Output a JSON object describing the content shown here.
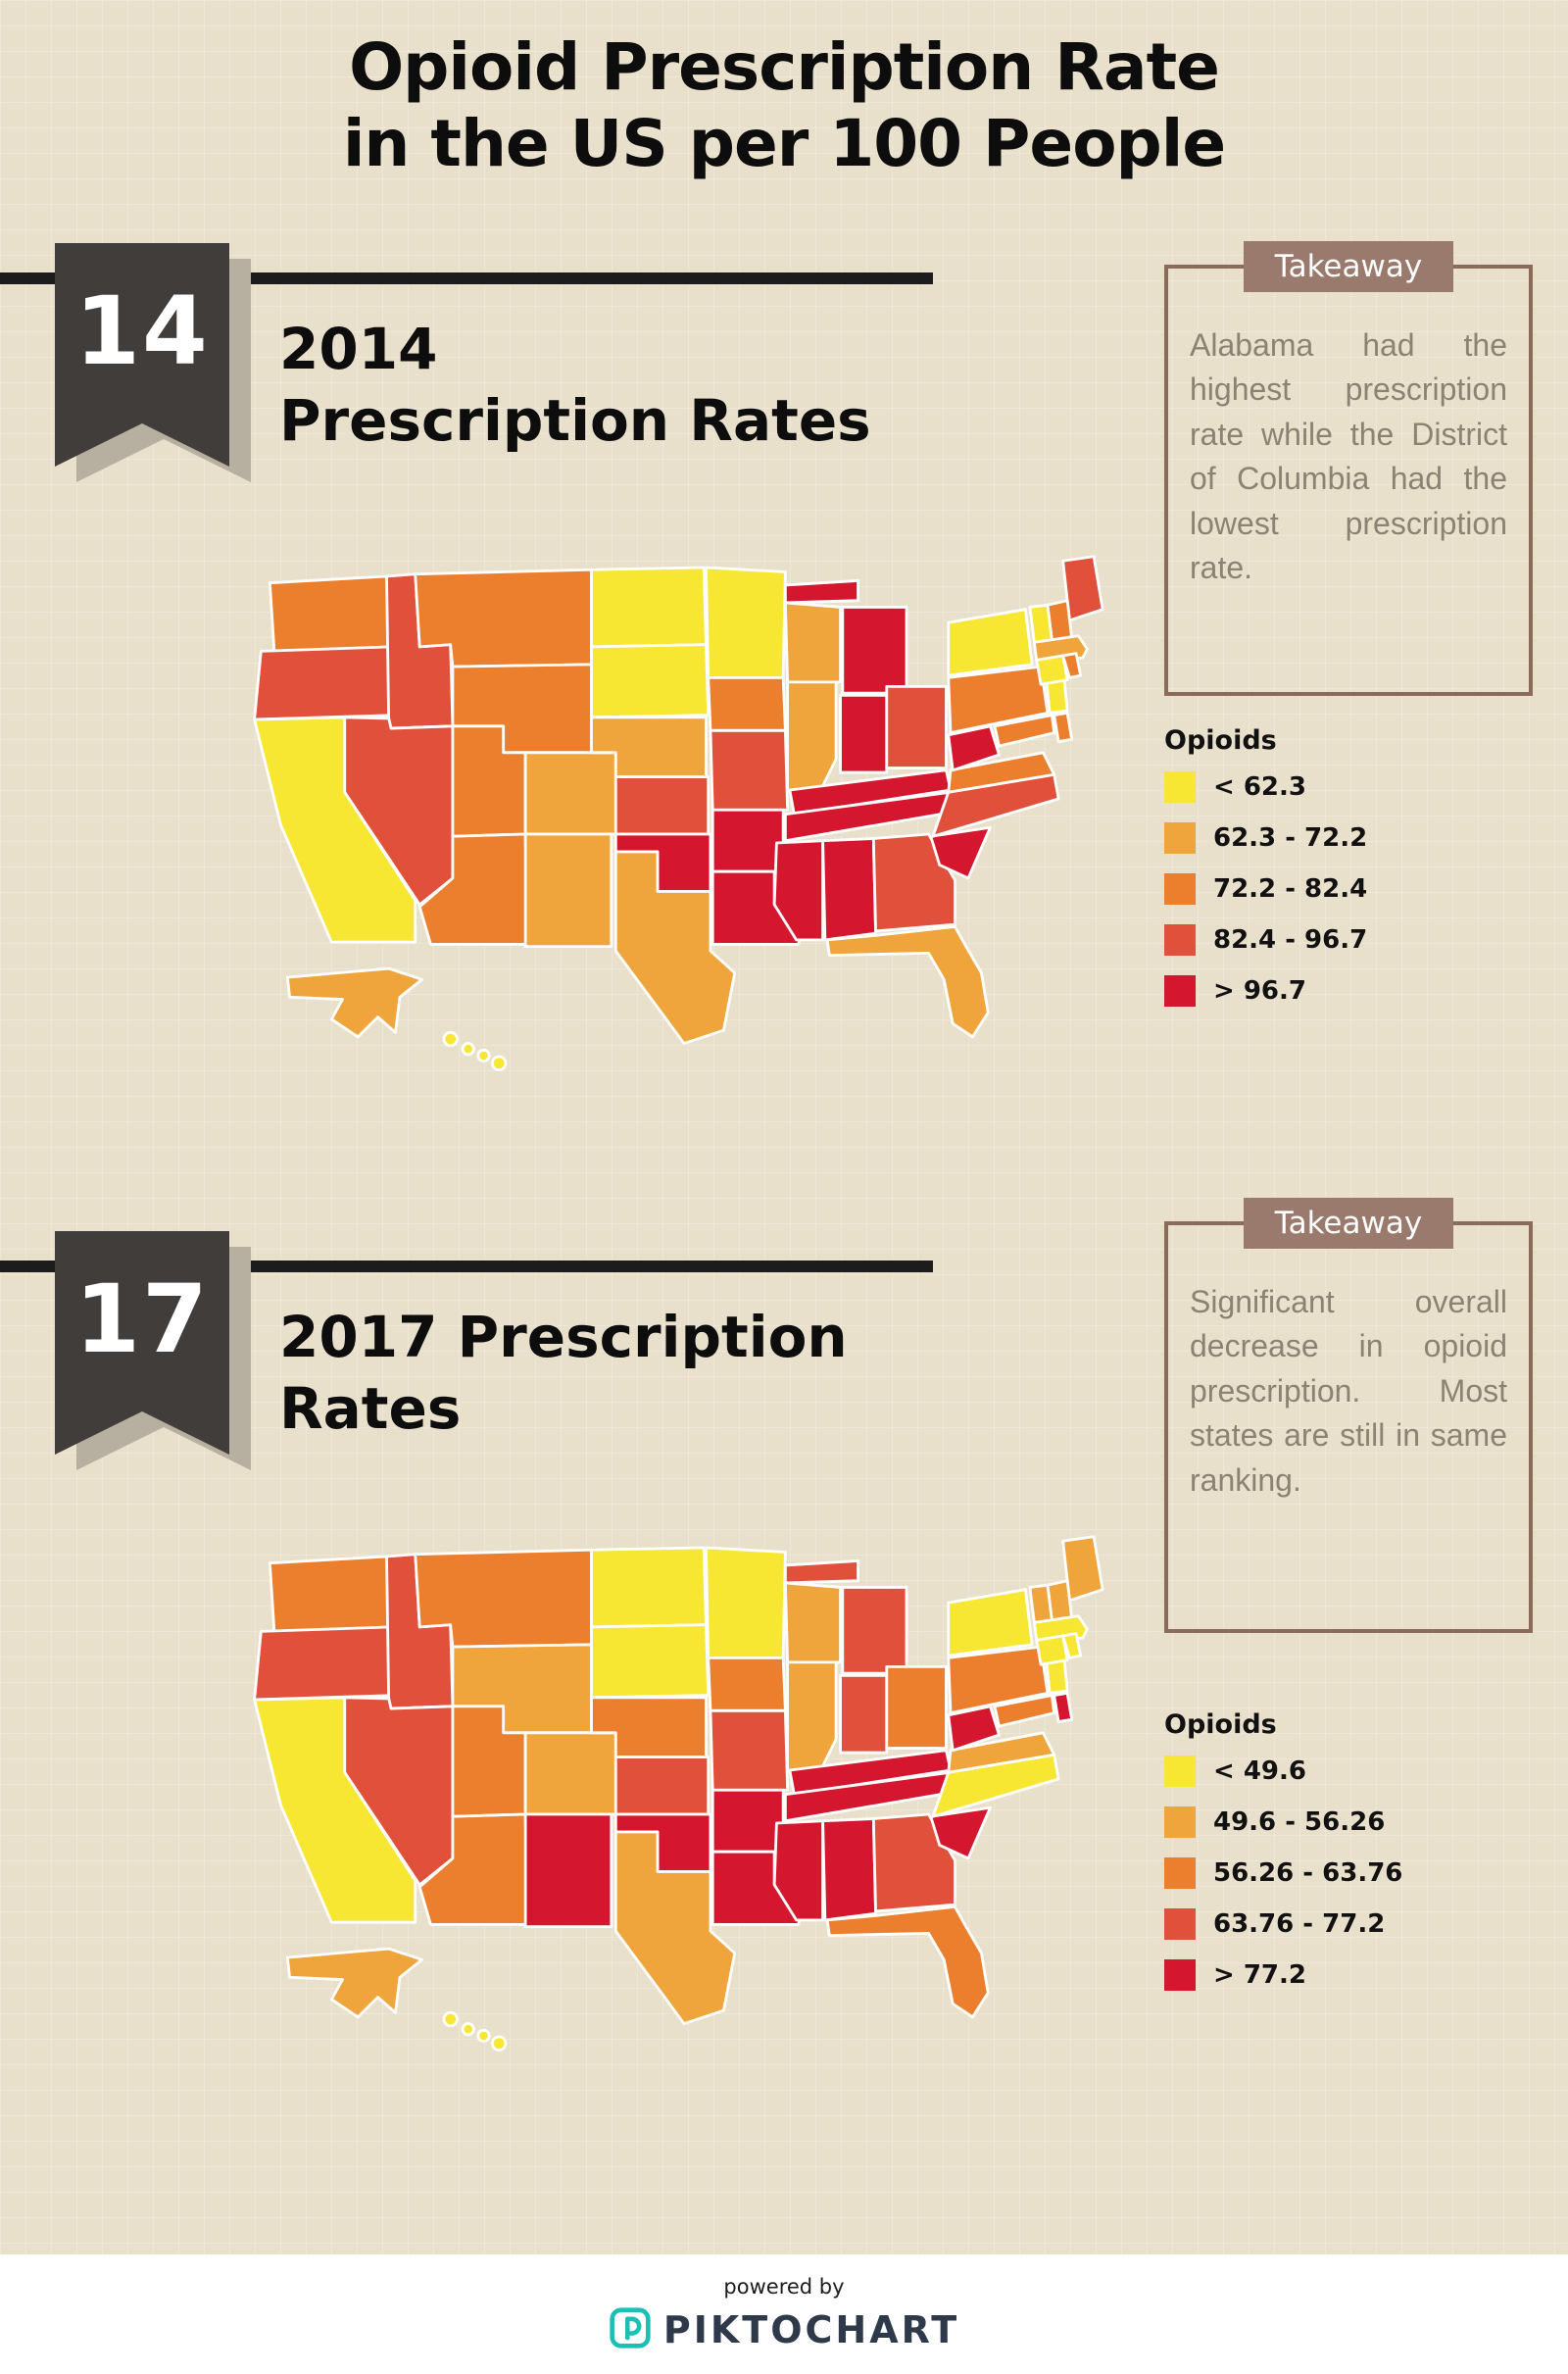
{
  "title": {
    "line1": "Opioid Prescription Rate",
    "line2": "in the US per 100 People"
  },
  "sections": [
    {
      "ribbon": "14",
      "heading_line1": "2014",
      "heading_line2": "Prescription Rates",
      "takeaway": {
        "header": "Takeaway",
        "text": "Alabama had the highest prescription rate while the District of Columbia had the lowest prescription rate."
      }
    },
    {
      "ribbon": "17",
      "heading_line1": "2017 Prescription",
      "heading_line2": "Rates",
      "takeaway": {
        "header": "Takeaway",
        "text": "Significant overall decrease in opioid prescription. Most states are still in same ranking."
      }
    }
  ],
  "footer": {
    "powered_by": "powered by",
    "brand": "PIKTOCHART"
  },
  "colors": {
    "background": "#E9E0CC",
    "bar": "#1C1C1C",
    "ribbon": "#403D3B",
    "ribbon_shadow": "#B7AF9F",
    "takeaway_border": "#8A6A58",
    "takeaway_header_bg": "#9A7A6C",
    "takeaway_text": "#8C8273",
    "brand_teal": "#1BBFB4",
    "brand_dark": "#2E3A4A",
    "scale": [
      "#F7E733",
      "#F0A43C",
      "#EB7F2E",
      "#E0503A",
      "#D4162E"
    ]
  },
  "chart_data": [
    {
      "type": "choropleth",
      "year": "2014",
      "title": "2014 Prescription Rates",
      "unit": "opioid prescriptions per 100 people",
      "legend_title": "Opioids",
      "bins": [
        "< 62.3",
        "62.3 - 72.2",
        "72.2 - 82.4",
        "82.4 - 96.7",
        "> 96.7"
      ],
      "bin_colors": [
        "#F7E733",
        "#F0A43C",
        "#EB7F2E",
        "#E0503A",
        "#D4162E"
      ],
      "state_bins": {
        "WA": 2,
        "OR": 3,
        "CA": 0,
        "NV": 3,
        "ID": 3,
        "MT": 2,
        "WY": 2,
        "UT": 2,
        "CO": 1,
        "AZ": 2,
        "NM": 1,
        "ND": 0,
        "SD": 0,
        "NE": 1,
        "KS": 3,
        "OK": 4,
        "TX": 1,
        "MN": 0,
        "IA": 2,
        "MO": 3,
        "AR": 4,
        "LA": 4,
        "WI": 1,
        "IL": 1,
        "MI": 4,
        "IN": 4,
        "OH": 3,
        "KY": 4,
        "TN": 4,
        "MS": 4,
        "AL": 4,
        "GA": 3,
        "FL": 1,
        "SC": 4,
        "NC": 3,
        "VA": 2,
        "WV": 4,
        "MD": 2,
        "DE": 2,
        "PA": 2,
        "NJ": 0,
        "NY": 0,
        "CT": 0,
        "RI": 2,
        "MA": 1,
        "VT": 0,
        "NH": 2,
        "ME": 3,
        "AK": 1,
        "HI": 0
      }
    },
    {
      "type": "choropleth",
      "year": "2017",
      "title": "2017 Prescription Rates",
      "unit": "opioid prescriptions per 100 people",
      "legend_title": "Opioids",
      "bins": [
        "< 49.6",
        "49.6 - 56.26",
        "56.26 - 63.76",
        "63.76 - 77.2",
        "> 77.2"
      ],
      "bin_colors": [
        "#F7E733",
        "#F0A43C",
        "#EB7F2E",
        "#E0503A",
        "#D4162E"
      ],
      "state_bins": {
        "WA": 2,
        "OR": 3,
        "CA": 0,
        "NV": 3,
        "ID": 3,
        "MT": 2,
        "WY": 1,
        "UT": 2,
        "CO": 1,
        "AZ": 2,
        "NM": 4,
        "ND": 0,
        "SD": 0,
        "NE": 2,
        "KS": 3,
        "OK": 4,
        "TX": 1,
        "MN": 0,
        "IA": 2,
        "MO": 3,
        "AR": 4,
        "LA": 4,
        "WI": 1,
        "IL": 1,
        "MI": 3,
        "IN": 3,
        "OH": 2,
        "KY": 4,
        "TN": 4,
        "MS": 4,
        "AL": 4,
        "GA": 3,
        "FL": 2,
        "SC": 4,
        "NC": 0,
        "VA": 1,
        "WV": 4,
        "MD": 2,
        "DE": 4,
        "PA": 2,
        "NJ": 0,
        "NY": 0,
        "CT": 0,
        "RI": 0,
        "MA": 0,
        "VT": 1,
        "NH": 1,
        "ME": 1,
        "AK": 1,
        "HI": 0
      }
    }
  ]
}
